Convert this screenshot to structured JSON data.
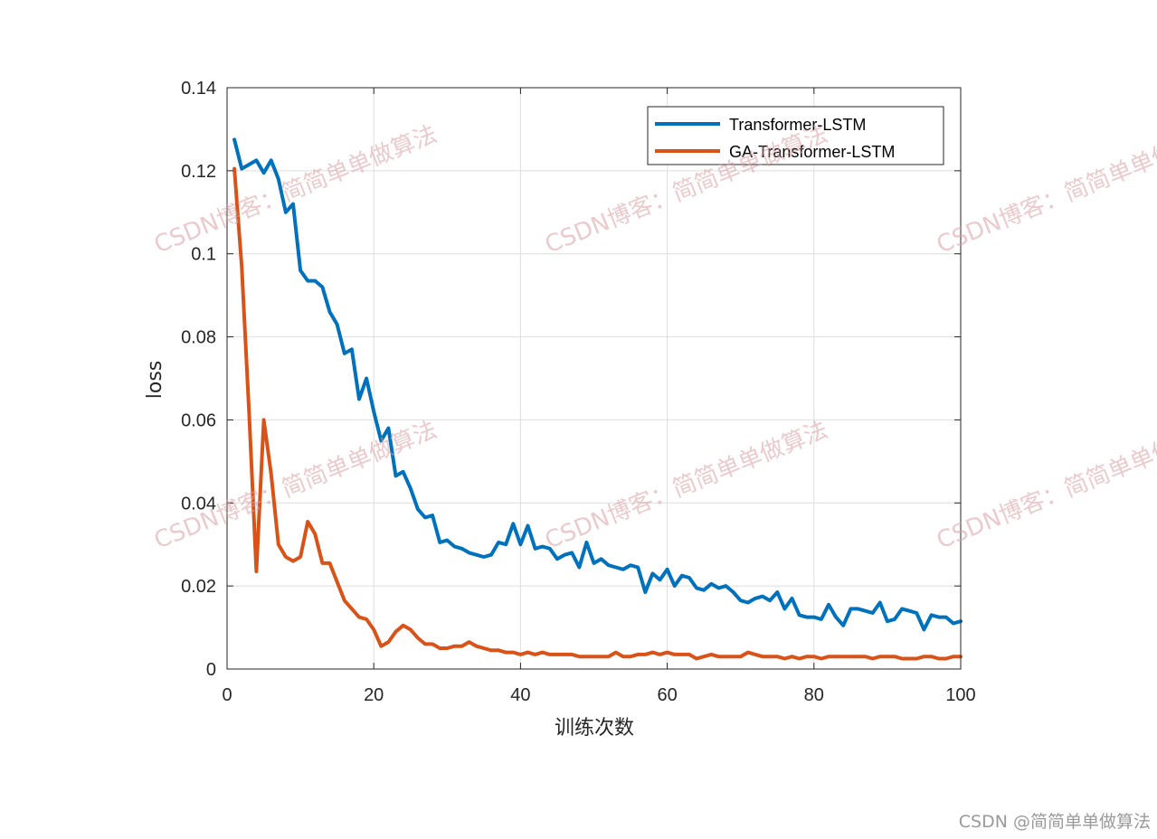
{
  "chart_data": {
    "type": "line",
    "xlabel": "训练次数",
    "ylabel": "loss",
    "xlim": [
      0,
      100
    ],
    "ylim": [
      0,
      0.14
    ],
    "xticks": [
      "0",
      "20",
      "40",
      "60",
      "80",
      "100"
    ],
    "yticks": [
      "0",
      "0.02",
      "0.04",
      "0.06",
      "0.08",
      "0.1",
      "0.12",
      "0.14"
    ],
    "grid": true,
    "legend_position": "top-right",
    "x": [
      1,
      2,
      3,
      4,
      5,
      6,
      7,
      8,
      9,
      10,
      11,
      12,
      13,
      14,
      15,
      16,
      17,
      18,
      19,
      20,
      21,
      22,
      23,
      24,
      25,
      26,
      27,
      28,
      29,
      30,
      31,
      32,
      33,
      34,
      35,
      36,
      37,
      38,
      39,
      40,
      41,
      42,
      43,
      44,
      45,
      46,
      47,
      48,
      49,
      50,
      51,
      52,
      53,
      54,
      55,
      56,
      57,
      58,
      59,
      60,
      61,
      62,
      63,
      64,
      65,
      66,
      67,
      68,
      69,
      70,
      71,
      72,
      73,
      74,
      75,
      76,
      77,
      78,
      79,
      80,
      81,
      82,
      83,
      84,
      85,
      86,
      87,
      88,
      89,
      90,
      91,
      92,
      93,
      94,
      95,
      96,
      97,
      98,
      99,
      100
    ],
    "series": [
      {
        "name": "Transformer-LSTM",
        "color": "#0072BD",
        "values": [
          0.1275,
          0.1205,
          0.1215,
          0.1225,
          0.1195,
          0.1225,
          0.118,
          0.11,
          0.112,
          0.096,
          0.0935,
          0.0935,
          0.092,
          0.086,
          0.083,
          0.076,
          0.077,
          0.065,
          0.07,
          0.062,
          0.055,
          0.058,
          0.0465,
          0.0475,
          0.0435,
          0.0385,
          0.0365,
          0.037,
          0.0305,
          0.031,
          0.0295,
          0.029,
          0.028,
          0.0275,
          0.027,
          0.0275,
          0.0305,
          0.03,
          0.035,
          0.03,
          0.0345,
          0.029,
          0.0295,
          0.029,
          0.0265,
          0.0275,
          0.028,
          0.0245,
          0.0305,
          0.0255,
          0.0265,
          0.025,
          0.0245,
          0.024,
          0.025,
          0.0245,
          0.0185,
          0.023,
          0.0215,
          0.024,
          0.02,
          0.0225,
          0.022,
          0.0195,
          0.019,
          0.0205,
          0.0195,
          0.02,
          0.0185,
          0.0165,
          0.016,
          0.017,
          0.0175,
          0.0165,
          0.0185,
          0.0145,
          0.017,
          0.013,
          0.0125,
          0.0125,
          0.012,
          0.0155,
          0.0125,
          0.0105,
          0.0145,
          0.0145,
          0.014,
          0.0135,
          0.016,
          0.0115,
          0.012,
          0.0145,
          0.014,
          0.0135,
          0.0095,
          0.013,
          0.0125,
          0.0125,
          0.011,
          0.0115
        ]
      },
      {
        "name": "GA-Transformer-LSTM",
        "color": "#D95319",
        "values": [
          0.1205,
          0.097,
          0.062,
          0.0235,
          0.06,
          0.047,
          0.03,
          0.027,
          0.026,
          0.027,
          0.0355,
          0.0325,
          0.0255,
          0.0255,
          0.021,
          0.0165,
          0.0145,
          0.0125,
          0.012,
          0.0095,
          0.0055,
          0.0065,
          0.009,
          0.0105,
          0.0095,
          0.0075,
          0.006,
          0.006,
          0.005,
          0.005,
          0.0055,
          0.0055,
          0.0065,
          0.0055,
          0.005,
          0.0045,
          0.0045,
          0.004,
          0.004,
          0.0035,
          0.004,
          0.0035,
          0.004,
          0.0035,
          0.0035,
          0.0035,
          0.0035,
          0.003,
          0.003,
          0.003,
          0.003,
          0.003,
          0.004,
          0.003,
          0.003,
          0.0035,
          0.0035,
          0.004,
          0.0035,
          0.004,
          0.0035,
          0.0035,
          0.0035,
          0.0025,
          0.003,
          0.0035,
          0.003,
          0.003,
          0.003,
          0.003,
          0.004,
          0.0035,
          0.003,
          0.003,
          0.003,
          0.0025,
          0.003,
          0.0025,
          0.003,
          0.003,
          0.0025,
          0.003,
          0.003,
          0.003,
          0.003,
          0.003,
          0.003,
          0.0025,
          0.003,
          0.003,
          0.003,
          0.0025,
          0.0025,
          0.0025,
          0.003,
          0.003,
          0.0025,
          0.0025,
          0.003,
          0.003
        ]
      }
    ]
  },
  "watermarks": [
    "CSDN博客：简简单单做算法"
  ],
  "footer_text": "CSDN @简简单单做算法"
}
